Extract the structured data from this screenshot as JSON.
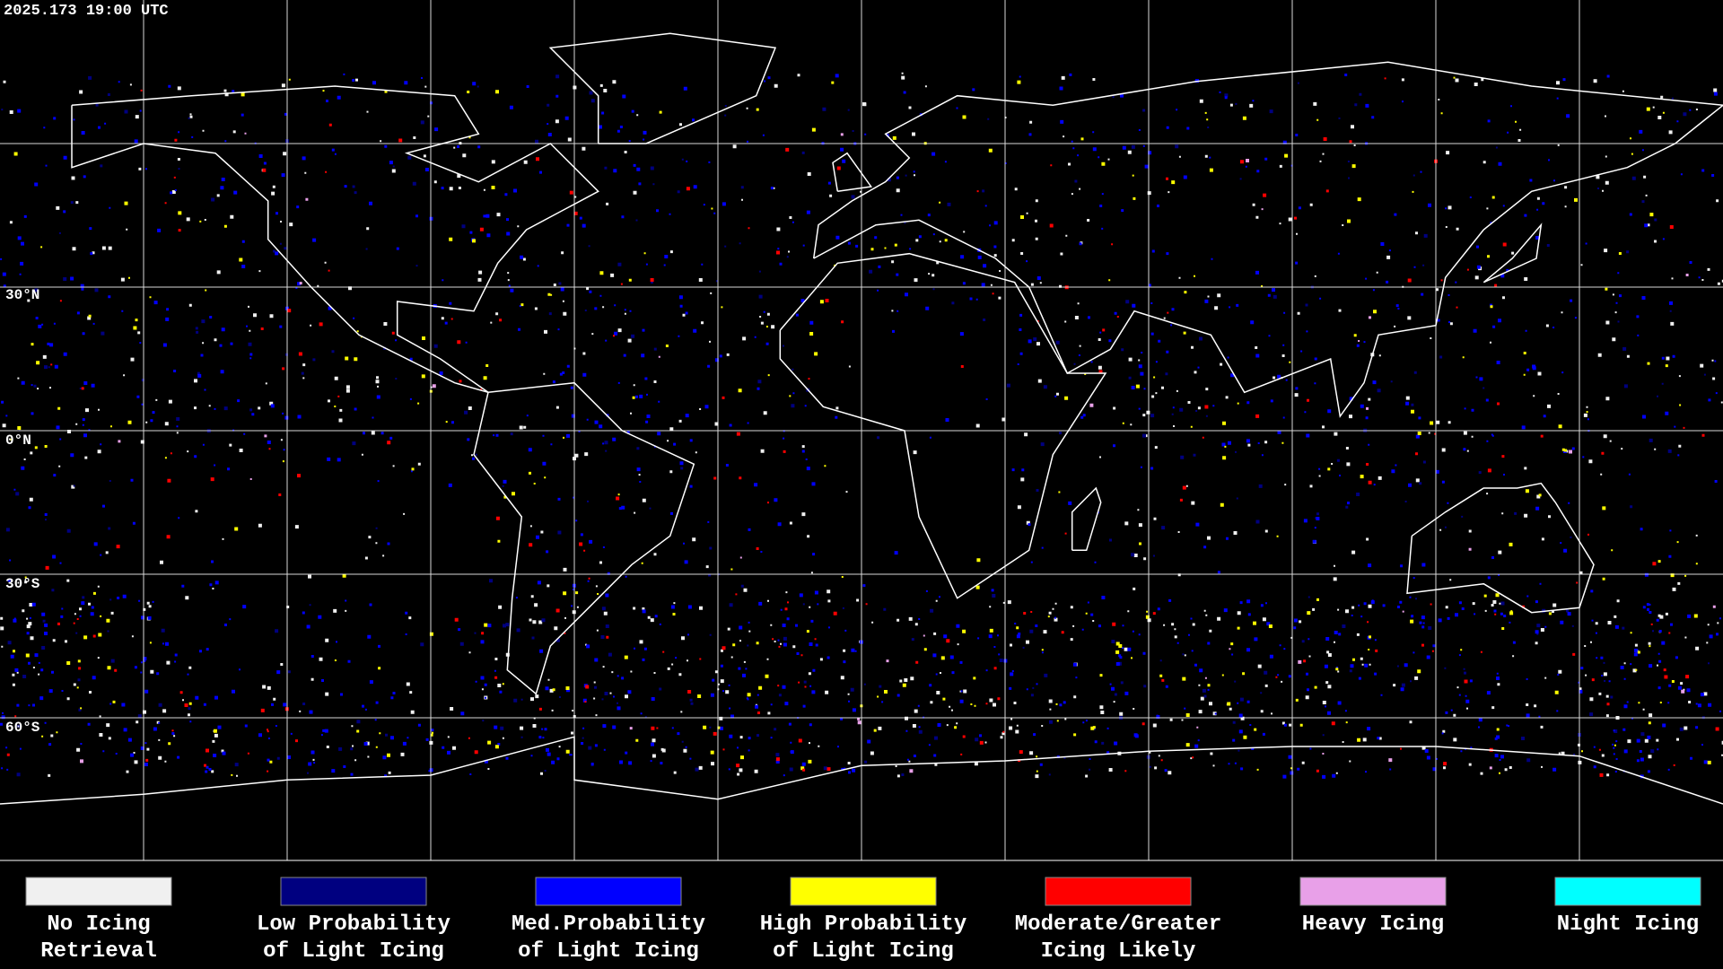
{
  "timestamp": "2025.173 19:00 UTC",
  "latitude_labels": [
    "30°N",
    "0°N",
    "30°S",
    "60°S"
  ],
  "legend": [
    {
      "label": [
        "No Icing",
        "Retrieval"
      ],
      "color": "#f0f0f0"
    },
    {
      "label": [
        "Low Probability",
        "of Light Icing"
      ],
      "color": "#000080"
    },
    {
      "label": [
        "Med.Probability",
        "of Light Icing"
      ],
      "color": "#0000ff"
    },
    {
      "label": [
        "High Probability",
        "of Light Icing"
      ],
      "color": "#ffff00"
    },
    {
      "label": [
        "Moderate/Greater",
        "Icing Likely"
      ],
      "color": "#ff0000"
    },
    {
      "label": [
        "Heavy Icing",
        ""
      ],
      "color": "#e8a0e8"
    },
    {
      "label": [
        "Night Icing",
        ""
      ],
      "color": "#00ffff"
    }
  ]
}
